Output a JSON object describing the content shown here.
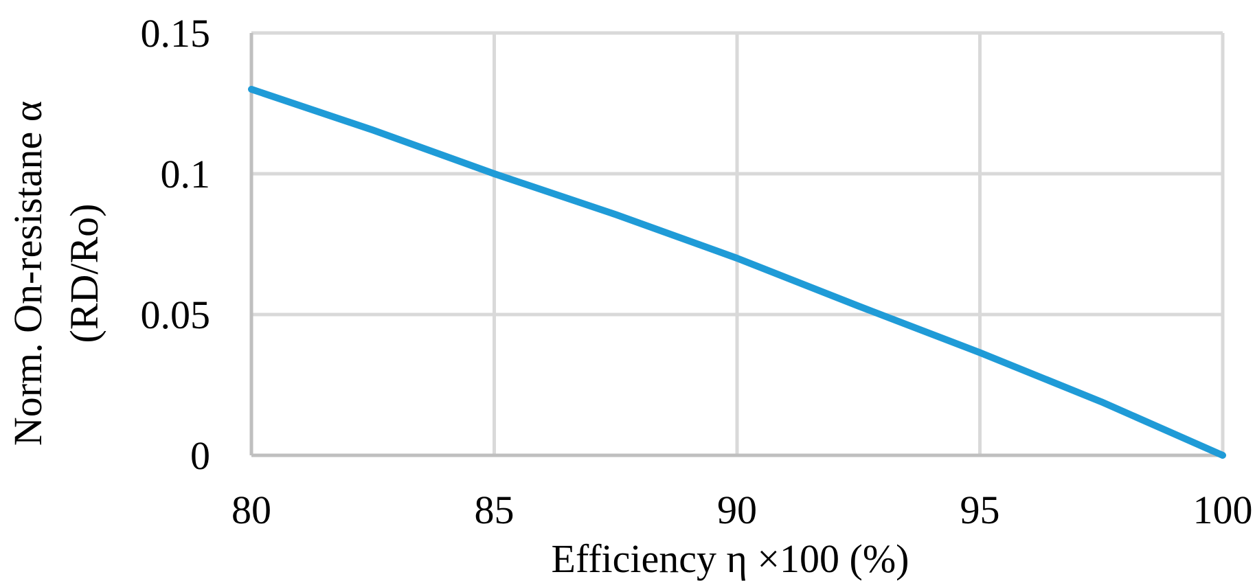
{
  "chart_data": {
    "type": "line",
    "title": "",
    "xlabel": "Efficiency η ×100 (%)",
    "ylabel_lines": [
      "Norm. On-resistane α",
      "(RD/Ro)"
    ],
    "xlim": [
      80,
      100
    ],
    "ylim": [
      0,
      0.15
    ],
    "x_ticks": [
      80,
      85,
      90,
      95,
      100
    ],
    "y_ticks": [
      0,
      0.05,
      0.1,
      0.15
    ],
    "x_tick_labels": [
      "80",
      "85",
      "90",
      "95",
      "100"
    ],
    "y_tick_labels": [
      "0",
      "0.05",
      "0.1",
      "0.15"
    ],
    "grid": true,
    "series": [
      {
        "color": "#1f9bd7",
        "x": [
          80,
          82.5,
          85,
          87.5,
          90,
          92.5,
          95,
          97.5,
          100
        ],
        "y": [
          0.13,
          0.1155,
          0.1,
          0.0855,
          0.07,
          0.053,
          0.0365,
          0.019,
          0.0
        ]
      }
    ],
    "grid_color": "#d9d9d9",
    "axis_color": "#bfbfbf"
  }
}
